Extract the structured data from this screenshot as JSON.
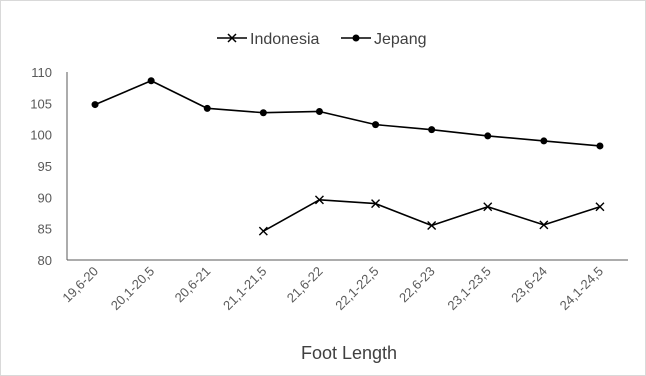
{
  "chart_data": {
    "type": "line",
    "title": "",
    "xlabel": "Foot Length",
    "ylabel": "",
    "ylim": [
      80,
      110
    ],
    "yticks": [
      80,
      85,
      90,
      95,
      100,
      105,
      110
    ],
    "grid": false,
    "legend_position": "top",
    "categories": [
      "19,6-20",
      "20,1-20,5",
      "20,6-21",
      "21,1-21,5",
      "21,6-22",
      "22,1-22,5",
      "22,6-23",
      "23,1-23,5",
      "23,6-24",
      "24,1-24,5"
    ],
    "series": [
      {
        "name": "Indonesia",
        "marker": "x",
        "color": "#000000",
        "values": [
          null,
          null,
          null,
          84.6,
          89.6,
          89.0,
          85.5,
          88.5,
          85.6,
          88.5
        ]
      },
      {
        "name": "Jepang",
        "marker": "circle",
        "color": "#000000",
        "values": [
          104.8,
          108.6,
          104.2,
          103.5,
          103.7,
          101.6,
          100.8,
          99.8,
          99.0,
          98.2
        ]
      }
    ]
  }
}
